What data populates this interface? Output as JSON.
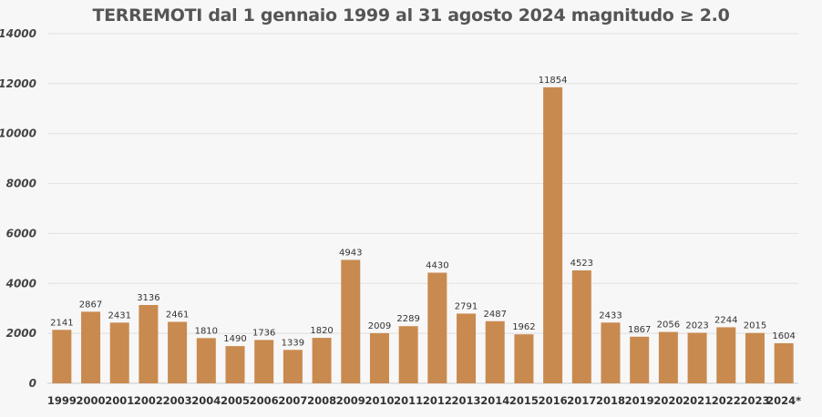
{
  "chart_data": {
    "type": "bar",
    "title": "TERREMOTI dal 1 gennaio 1999 al 31 agosto 2024 magnitudo ≥ 2.0",
    "xlabel": "",
    "ylabel": "",
    "categories": [
      "1999",
      "2000",
      "2001",
      "2002",
      "2003",
      "2004",
      "2005",
      "2006",
      "2007",
      "2008",
      "2009",
      "2010",
      "2011",
      "2012",
      "2013",
      "2014",
      "2015",
      "2016",
      "2017",
      "2018",
      "2019",
      "2020",
      "2021",
      "2022",
      "2023",
      "2024*"
    ],
    "values": [
      2141,
      2867,
      2431,
      3136,
      2461,
      1810,
      1490,
      1736,
      1339,
      1820,
      4943,
      2009,
      2289,
      4430,
      2791,
      2487,
      1962,
      11854,
      4523,
      2433,
      1867,
      2056,
      2023,
      2244,
      2015,
      1604
    ],
    "data_labels": [
      "2141",
      "2867",
      "2431",
      "3136",
      "2461",
      "1810",
      "1490",
      "1736",
      "1339",
      "1820",
      "4943",
      "2009",
      "2289",
      "4430",
      "2791",
      "2487",
      "1962",
      "11854",
      "4523",
      "2433",
      "1867",
      "2056",
      "2023",
      "2244",
      "2015",
      "1604"
    ],
    "ylim": [
      0,
      14000
    ],
    "yticks": [
      "0",
      "2000",
      "4000",
      "6000",
      "8000",
      "10000",
      "12000",
      "14000"
    ],
    "grid": true,
    "legend": "none",
    "colors": {
      "bar": "#c98a4f",
      "grid": "#e0e0e0",
      "text": "#333333"
    }
  }
}
